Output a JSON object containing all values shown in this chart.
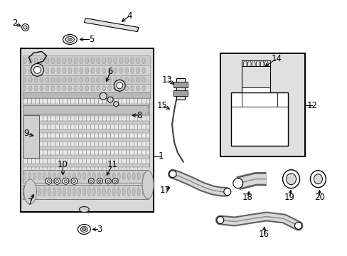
{
  "bg_color": "#ffffff",
  "lc": "#000000",
  "gc": "#c8c8c8",
  "lgc": "#e0e0e0",
  "mgc": "#a0a0a0",
  "figsize": [
    4.89,
    3.6
  ],
  "dpi": 100
}
